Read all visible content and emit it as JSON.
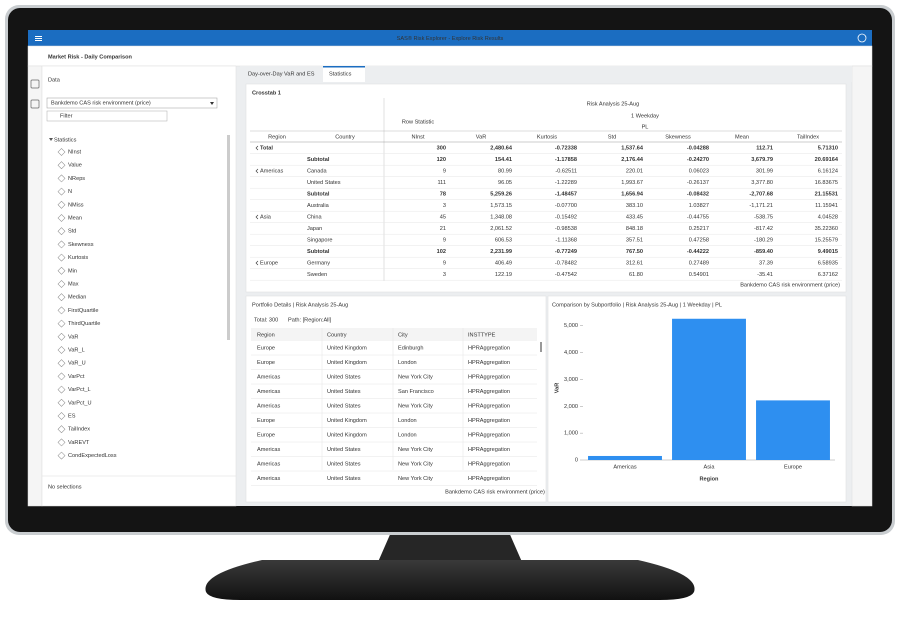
{
  "app_title": "SAS® Risk Explorer - Explore Risk Results",
  "page_title": "Market Risk - Daily Comparison",
  "data_panel": {
    "title": "Data",
    "source": "Bankdemo CAS risk environment (price)",
    "filter": "Filter",
    "group": "Statistics",
    "items": [
      "NInst",
      "Value",
      "NReps",
      "N",
      "NMiss",
      "Mean",
      "Std",
      "Skewness",
      "Kurtosis",
      "Min",
      "Max",
      "Median",
      "FirstQuartile",
      "ThirdQuartile",
      "VaR",
      "VaR_L",
      "VaR_U",
      "VarPct",
      "VarPct_L",
      "VarPct_U",
      "ES",
      "TailIndex",
      "VaREVT",
      "CondExpectedLoss"
    ],
    "selection": "No selections"
  },
  "tabs": [
    "Day-over-Day VaR and ES",
    "Statistics"
  ],
  "crosstab": {
    "title": "Crosstab 1",
    "header": "Risk Analysis 25-Aug",
    "row_statistic": "Row Statistic",
    "horizon": "1 Weekday",
    "measure": "PL",
    "columns": [
      "Region",
      "Country",
      "NInst",
      "VaR",
      "Kurtosis",
      "Std",
      "Skewness",
      "Mean",
      "TailIndex"
    ],
    "rows": [
      [
        "Total",
        null,
        "300",
        "2,480.64",
        "-0.72338",
        "1,537.64",
        "-0.04288",
        "112.71",
        "5.71310"
      ],
      [
        "Americas",
        "Subtotal",
        "120",
        "154.41",
        "-1.17858",
        "2,176.44",
        "-0.24270",
        "3,679.79",
        "20.69164"
      ],
      [
        null,
        "Canada",
        "9",
        "80.99",
        "-0.62511",
        "220.01",
        "0.06023",
        "301.99",
        "6.16124"
      ],
      [
        null,
        "United States",
        "111",
        "96.05",
        "-1.22289",
        "1,993.67",
        "-0.26137",
        "3,377.80",
        "16.83675"
      ],
      [
        "Asia",
        "Subtotal",
        "78",
        "5,259.26",
        "-1.48457",
        "1,656.94",
        "-0.08432",
        "-2,707.68",
        "21.15531"
      ],
      [
        null,
        "Australia",
        "3",
        "1,573.15",
        "-0.07700",
        "383.10",
        "1.03827",
        "-1,171.21",
        "11.15941"
      ],
      [
        null,
        "China",
        "45",
        "1,348.08",
        "-0.15492",
        "433.45",
        "-0.44755",
        "-538.75",
        "4.04528"
      ],
      [
        null,
        "Japan",
        "21",
        "2,061.52",
        "-0.98538",
        "848.18",
        "0.25217",
        "-817.42",
        "35.22360"
      ],
      [
        null,
        "Singapore",
        "9",
        "606.53",
        "-1.11368",
        "357.51",
        "0.47258",
        "-180.29",
        "15.25579"
      ],
      [
        "Europe",
        "Subtotal",
        "102",
        "2,231.99",
        "-0.77249",
        "767.50",
        "-0.44222",
        "-859.40",
        "9.49015"
      ],
      [
        null,
        "Germany",
        "9",
        "406.49",
        "-0.78482",
        "312.61",
        "0.27489",
        "37.39",
        "6.58935"
      ],
      [
        null,
        "Sweden",
        "3",
        "122.19",
        "-0.47542",
        "61.80",
        "0.54901",
        "-35.41",
        "6.37162"
      ]
    ],
    "footer": "Bankdemo CAS risk environment (price)"
  },
  "portfolio": {
    "title": "Portfolio Details | Risk Analysis 25-Aug",
    "total": "Total: 300",
    "path": "Path: [Region:All]",
    "columns": [
      "Region",
      "Country",
      "City",
      "INSTTYPE"
    ],
    "rows": [
      [
        "Europe",
        "United Kingdom",
        "Edinburgh",
        "HPRAggregation"
      ],
      [
        "Europe",
        "United Kingdom",
        "London",
        "HPRAggregation"
      ],
      [
        "Americas",
        "United States",
        "New York City",
        "HPRAggregation"
      ],
      [
        "Americas",
        "United States",
        "San Francisco",
        "HPRAggregation"
      ],
      [
        "Americas",
        "United States",
        "New York City",
        "HPRAggregation"
      ],
      [
        "Europe",
        "United Kingdom",
        "London",
        "HPRAggregation"
      ],
      [
        "Europe",
        "United Kingdom",
        "London",
        "HPRAggregation"
      ],
      [
        "Americas",
        "United States",
        "New York City",
        "HPRAggregation"
      ],
      [
        "Americas",
        "United States",
        "New York City",
        "HPRAggregation"
      ],
      [
        "Americas",
        "United States",
        "New York City",
        "HPRAggregation"
      ]
    ],
    "footer": "Bankdemo CAS risk environment (price)"
  },
  "chart_data": {
    "type": "bar",
    "title": "Comparison by Subportfolio | Risk Analysis 25-Aug | 1 Weekday | PL",
    "x_label": "Region",
    "y_label": "VaR",
    "categories": [
      "Americas",
      "Asia",
      "Europe"
    ],
    "values": [
      150,
      5260,
      2220
    ],
    "color": "#2e8ff0",
    "ylim": [
      0,
      5400
    ],
    "yticks": [
      0,
      {
        "value": 1000,
        "label": "1,000"
      },
      {
        "value": 2000,
        "label": "2,000"
      },
      {
        "value": 3000,
        "label": "3,000"
      },
      {
        "value": 4000,
        "label": "4,000"
      },
      {
        "value": 5000,
        "label": "5,000"
      }
    ]
  }
}
